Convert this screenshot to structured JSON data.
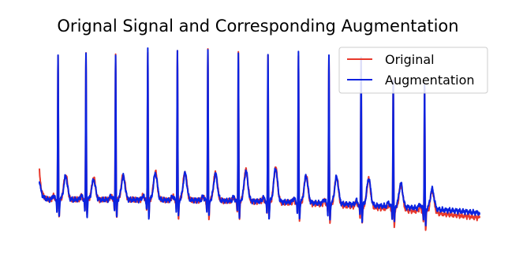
{
  "chart_data": {
    "type": "line",
    "title": "Orignal Signal and Corresponding Augmentation",
    "xlabel": "",
    "ylabel": "",
    "axes_visible": false,
    "grid": false,
    "legend_placement": "top-right",
    "xlim": [
      0,
      2600
    ],
    "ylim": [
      -1.3,
      4.8
    ],
    "beats": [
      {
        "t": 110,
        "amp": 4.35,
        "t_wave": 0.75
      },
      {
        "t": 275,
        "amp": 4.45,
        "t_wave": 0.65
      },
      {
        "t": 450,
        "amp": 4.4,
        "t_wave": 0.75
      },
      {
        "t": 640,
        "amp": 4.55,
        "t_wave": 0.85
      },
      {
        "t": 815,
        "amp": 4.5,
        "t_wave": 0.85
      },
      {
        "t": 995,
        "amp": 4.55,
        "t_wave": 0.85
      },
      {
        "t": 1175,
        "amp": 4.5,
        "t_wave": 0.95
      },
      {
        "t": 1350,
        "amp": 4.45,
        "t_wave": 1.05
      },
      {
        "t": 1530,
        "amp": 4.5,
        "t_wave": 0.85
      },
      {
        "t": 1710,
        "amp": 4.45,
        "t_wave": 0.85
      },
      {
        "t": 1900,
        "amp": 4.45,
        "t_wave": 0.85
      },
      {
        "t": 2090,
        "amp": 3.85,
        "t_wave": 0.75
      },
      {
        "t": 2275,
        "amp": 3.75,
        "t_wave": 0.65
      }
    ],
    "series": [
      {
        "name": "Original",
        "color": "#e8392c",
        "baseline_start": 0.1,
        "baseline_end": -0.45,
        "start_value": 0.95
      },
      {
        "name": "Augmentation",
        "color": "#0a22e0",
        "baseline_start": 0.1,
        "baseline_end": -0.3,
        "start_value": 0.7
      }
    ]
  }
}
